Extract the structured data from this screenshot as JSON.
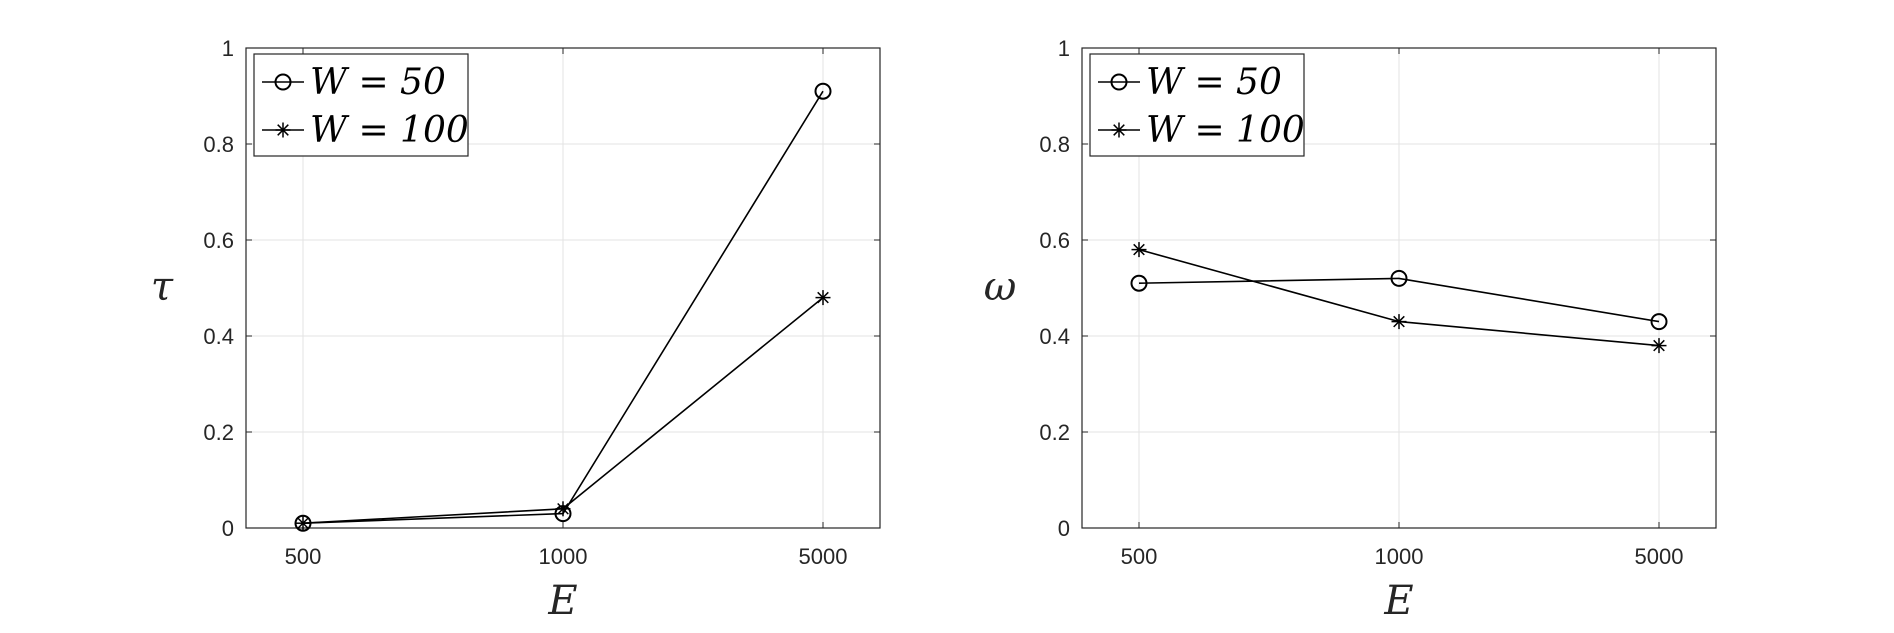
{
  "chart_data": [
    {
      "type": "line",
      "categories": [
        "500",
        "1000",
        "5000"
      ],
      "xlabel": "E",
      "ylabel": "τ",
      "ylim": [
        0,
        1
      ],
      "yticks": [
        "0",
        "0.2",
        "0.4",
        "0.6",
        "0.8",
        "1"
      ],
      "grid": true,
      "legend_position": "top-left",
      "series": [
        {
          "name": "W = 50",
          "marker": "circle",
          "values": [
            0.01,
            0.03,
            0.91
          ]
        },
        {
          "name": "W = 100",
          "marker": "asterisk",
          "values": [
            0.01,
            0.04,
            0.48
          ]
        }
      ]
    },
    {
      "type": "line",
      "categories": [
        "500",
        "1000",
        "5000"
      ],
      "xlabel": "E",
      "ylabel": "ω",
      "ylim": [
        0,
        1
      ],
      "yticks": [
        "0",
        "0.2",
        "0.4",
        "0.6",
        "0.8",
        "1"
      ],
      "grid": true,
      "legend_position": "top-left",
      "series": [
        {
          "name": "W = 50",
          "marker": "circle",
          "values": [
            0.51,
            0.52,
            0.43
          ]
        },
        {
          "name": "W = 100",
          "marker": "asterisk",
          "values": [
            0.58,
            0.43,
            0.38
          ]
        }
      ]
    }
  ]
}
